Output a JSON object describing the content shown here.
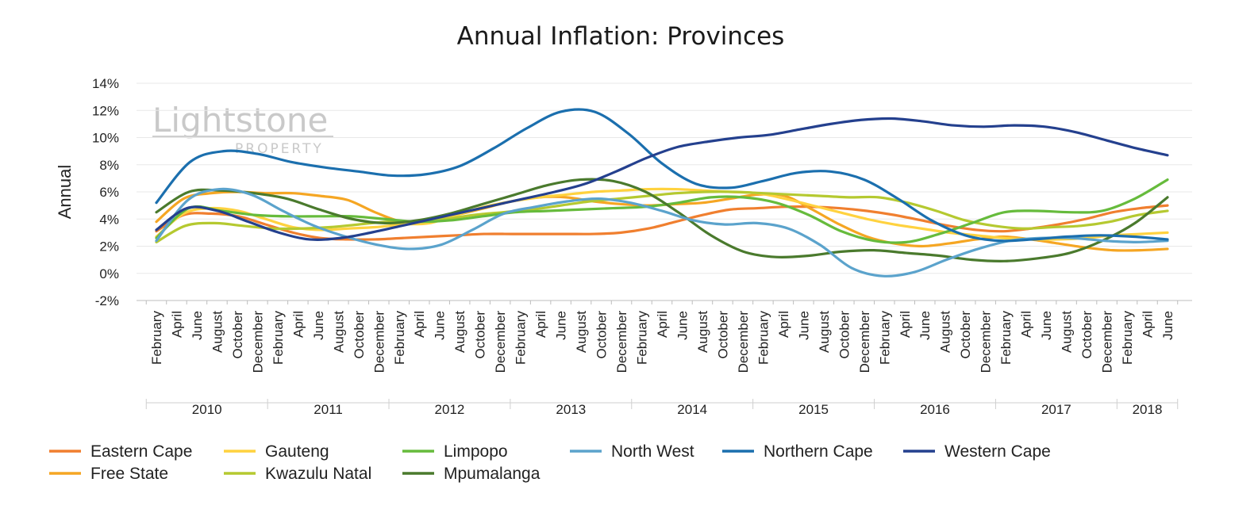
{
  "chart_data": {
    "type": "line",
    "title": "Annual Inflation: Provinces",
    "ylabel": "Annual",
    "xlabel": "",
    "ylim": [
      -2,
      14
    ],
    "yticks": [
      -2,
      0,
      2,
      4,
      6,
      8,
      10,
      12,
      14
    ],
    "ytick_labels": [
      "-2%",
      "0%",
      "2%",
      "4%",
      "6%",
      "8%",
      "10%",
      "12%",
      "14%"
    ],
    "x_month_labels": [
      "February",
      "April",
      "June",
      "August",
      "October",
      "December",
      "February",
      "April",
      "June",
      "August",
      "October",
      "December",
      "February",
      "April",
      "June",
      "August",
      "October",
      "December",
      "February",
      "April",
      "June",
      "August",
      "October",
      "December",
      "February",
      "April",
      "June",
      "August",
      "October",
      "December",
      "February",
      "April",
      "June",
      "August",
      "October",
      "December",
      "February",
      "April",
      "June",
      "August",
      "October",
      "December",
      "February",
      "April",
      "June",
      "August",
      "October",
      "December",
      "February",
      "April",
      "June"
    ],
    "x_year_labels": [
      "2010",
      "2011",
      "2012",
      "2013",
      "2014",
      "2015",
      "2016",
      "2017",
      "2018"
    ],
    "watermark": {
      "main": "Lightstone",
      "sub": "PROPERTY"
    },
    "grid": true,
    "legend_position": "bottom",
    "series": [
      {
        "name": "Eastern Cape",
        "color": "#F07F2F",
        "values": [
          3.1,
          4.3,
          4.4,
          4.2,
          3.6,
          3.0,
          2.6,
          2.5,
          2.5,
          2.6,
          2.7,
          2.8,
          2.9,
          2.9,
          2.9,
          2.9,
          2.9,
          3.0,
          3.3,
          3.8,
          4.3,
          4.7,
          4.8,
          4.9,
          4.9,
          4.8,
          4.6,
          4.3,
          3.9,
          3.5,
          3.2,
          3.1,
          3.3,
          3.6,
          4.0,
          4.5,
          4.8,
          5.0
        ]
      },
      {
        "name": "Free State",
        "color": "#F5A623",
        "values": [
          3.8,
          5.5,
          5.9,
          6.0,
          5.9,
          5.9,
          5.7,
          5.4,
          4.5,
          3.8,
          3.8,
          4.3,
          4.8,
          5.3,
          5.6,
          5.6,
          5.3,
          5.1,
          5.0,
          5.1,
          5.2,
          5.5,
          5.8,
          5.7,
          4.7,
          3.6,
          2.7,
          2.2,
          2.0,
          2.2,
          2.5,
          2.7,
          2.5,
          2.2,
          1.9,
          1.7,
          1.7,
          1.8
        ]
      },
      {
        "name": "Gauteng",
        "color": "#FFD23F",
        "values": [
          2.7,
          4.4,
          4.8,
          4.6,
          4.0,
          3.4,
          3.2,
          3.3,
          3.4,
          3.6,
          3.7,
          4.3,
          4.9,
          5.3,
          5.6,
          5.8,
          6.0,
          6.1,
          6.2,
          6.2,
          6.1,
          6.0,
          5.9,
          5.5,
          5.0,
          4.5,
          4.0,
          3.6,
          3.3,
          3.0,
          2.8,
          2.6,
          2.5,
          2.5,
          2.6,
          2.8,
          2.9,
          3.0
        ]
      },
      {
        "name": "Kwazulu Natal",
        "color": "#B5C930",
        "values": [
          2.3,
          3.5,
          3.7,
          3.5,
          3.3,
          3.3,
          3.4,
          3.6,
          3.8,
          3.8,
          4.0,
          4.3,
          4.5,
          4.7,
          5.0,
          5.3,
          5.5,
          5.7,
          5.9,
          6.0,
          6.0,
          5.9,
          5.8,
          5.7,
          5.6,
          5.6,
          5.2,
          4.6,
          3.9,
          3.5,
          3.3,
          3.4,
          3.5,
          3.8,
          4.3,
          4.6
        ]
      },
      {
        "name": "Limpopo",
        "color": "#66BB3C",
        "values": [
          2.6,
          4.8,
          4.6,
          4.3,
          4.2,
          4.2,
          4.2,
          4.0,
          3.8,
          3.9,
          4.2,
          4.5,
          4.6,
          4.7,
          4.8,
          4.9,
          5.2,
          5.6,
          5.6,
          5.2,
          4.3,
          3.1,
          2.4,
          2.3,
          2.9,
          3.7,
          4.5,
          4.6,
          4.5,
          4.6,
          5.5,
          6.9
        ]
      },
      {
        "name": "Mpumalanga",
        "color": "#4A7A2D",
        "values": [
          4.5,
          6.0,
          6.1,
          5.9,
          5.5,
          4.7,
          4.0,
          3.7,
          3.9,
          4.4,
          5.1,
          5.8,
          6.5,
          6.9,
          6.8,
          6.0,
          4.5,
          2.8,
          1.6,
          1.2,
          1.3,
          1.6,
          1.7,
          1.5,
          1.3,
          1.0,
          0.9,
          1.1,
          1.5,
          2.4,
          3.7,
          5.6
        ]
      },
      {
        "name": "North West",
        "color": "#5BA3CC",
        "values": [
          2.4,
          5.4,
          6.2,
          5.8,
          4.6,
          3.5,
          2.7,
          2.1,
          1.8,
          2.1,
          3.2,
          4.4,
          4.9,
          5.3,
          5.5,
          5.2,
          4.6,
          3.9,
          3.6,
          3.7,
          3.3,
          2.1,
          0.4,
          -0.2,
          0.1,
          1.0,
          1.8,
          2.4,
          2.6,
          2.6,
          2.4,
          2.3,
          2.4
        ]
      },
      {
        "name": "Northern Cape",
        "color": "#1B6FAE",
        "values": [
          5.2,
          8.2,
          9.0,
          8.8,
          8.2,
          7.8,
          7.5,
          7.2,
          7.3,
          7.9,
          9.2,
          10.7,
          11.9,
          11.9,
          10.3,
          8.1,
          6.6,
          6.3,
          6.8,
          7.4,
          7.5,
          6.9,
          5.5,
          3.9,
          2.8,
          2.4,
          2.5,
          2.7,
          2.8,
          2.7,
          2.5
        ]
      },
      {
        "name": "Western Cape",
        "color": "#24408E",
        "values": [
          3.2,
          4.8,
          4.6,
          3.8,
          3.0,
          2.5,
          2.6,
          3.0,
          3.5,
          4.0,
          4.5,
          5.0,
          5.5,
          6.0,
          6.6,
          7.5,
          8.5,
          9.3,
          9.7,
          10.0,
          10.2,
          10.6,
          11.0,
          11.3,
          11.4,
          11.2,
          10.9,
          10.8,
          10.9,
          10.8,
          10.4,
          9.8,
          9.2,
          8.7
        ]
      }
    ]
  }
}
